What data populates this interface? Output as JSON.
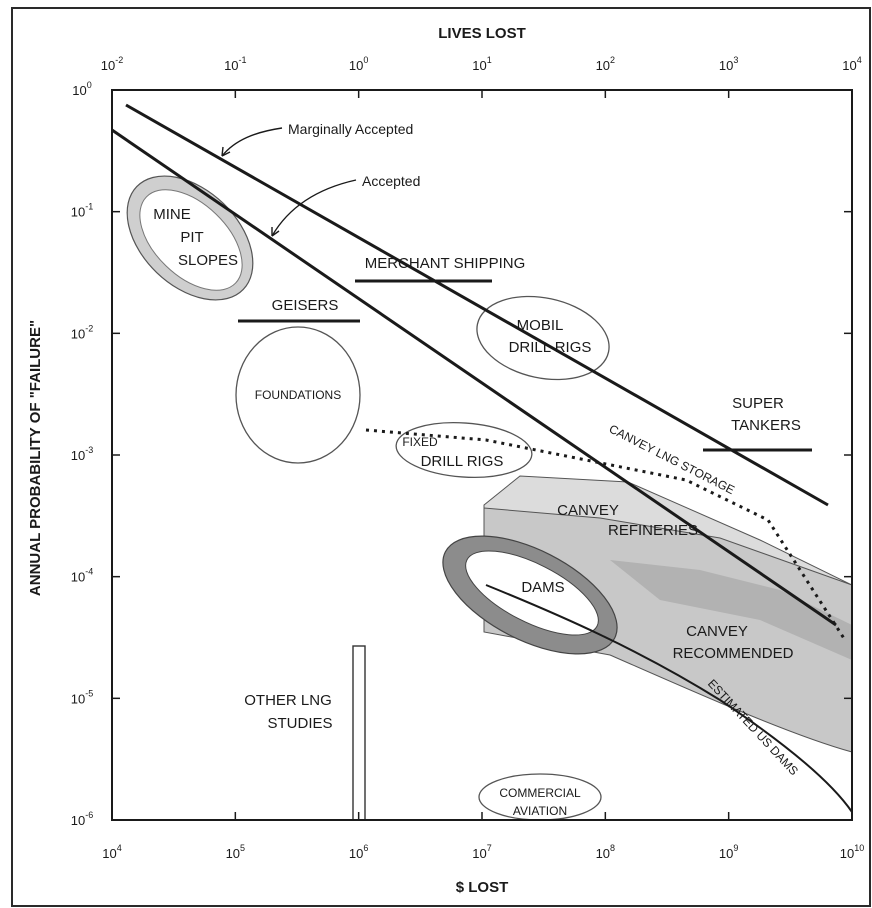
{
  "chart_data": {
    "type": "scatter",
    "title": "",
    "x_axis_top": {
      "label": "LIVES LOST",
      "scale": "log",
      "range": [
        0.01,
        10000
      ],
      "ticks": [
        {
          "base": "10",
          "exp": "-2",
          "value": 0.01
        },
        {
          "base": "10",
          "exp": "-1",
          "value": 0.1
        },
        {
          "base": "10",
          "exp": "0",
          "value": 1
        },
        {
          "base": "10",
          "exp": "1",
          "value": 10
        },
        {
          "base": "10",
          "exp": "2",
          "value": 100
        },
        {
          "base": "10",
          "exp": "3",
          "value": 1000
        },
        {
          "base": "10",
          "exp": "4",
          "value": 10000
        }
      ]
    },
    "x_axis_bottom": {
      "label": "$ LOST",
      "scale": "log",
      "range": [
        10000,
        10000000000
      ],
      "ticks": [
        {
          "base": "10",
          "exp": "4",
          "value": 10000
        },
        {
          "base": "10",
          "exp": "5",
          "value": 100000
        },
        {
          "base": "10",
          "exp": "6",
          "value": 1000000
        },
        {
          "base": "10",
          "exp": "7",
          "value": 10000000
        },
        {
          "base": "10",
          "exp": "8",
          "value": 100000000
        },
        {
          "base": "10",
          "exp": "9",
          "value": 1000000000
        },
        {
          "base": "10",
          "exp": "10",
          "value": 10000000000
        }
      ]
    },
    "y_axis": {
      "label": "ANNUAL PROBABILITY OF \"FAILURE\"",
      "scale": "log",
      "range": [
        1e-06,
        1
      ],
      "ticks": [
        {
          "base": "10",
          "exp": "0",
          "value": 1
        },
        {
          "base": "10",
          "exp": "-1",
          "value": 0.1
        },
        {
          "base": "10",
          "exp": "-2",
          "value": 0.01
        },
        {
          "base": "10",
          "exp": "-3",
          "value": 0.001
        },
        {
          "base": "10",
          "exp": "-4",
          "value": 0.0001
        },
        {
          "base": "10",
          "exp": "-5",
          "value": 1e-05
        },
        {
          "base": "10",
          "exp": "-6",
          "value": 1e-06
        }
      ]
    },
    "grid": false,
    "legend": "none",
    "lines": [
      {
        "name": "Marginally Accepted",
        "points": [
          [
            0.013,
            0.78
          ],
          [
            5500,
            0.0004
          ]
        ]
      },
      {
        "name": "Accepted",
        "points": [
          [
            0.01,
            0.5
          ],
          [
            7700,
            2.9e-05
          ]
        ]
      },
      {
        "name": "CANVEY LNG STORAGE",
        "style": "dotted",
        "points": [
          [
            1.05,
            0.0017
          ],
          [
            11,
            0.0014
          ],
          [
            440,
            0.00065
          ],
          [
            2000,
            0.00028
          ],
          [
            8500,
            2.8e-05
          ]
        ]
      },
      {
        "name": "ESTIMATED US DAMS",
        "points": [
          [
            10,
            9e-05
          ],
          [
            100,
            4e-05
          ],
          [
            1000,
            1.2e-05
          ],
          [
            4600,
            3.5e-06
          ],
          [
            10000,
            1.1e-06
          ]
        ]
      },
      {
        "name": "MERCHANT SHIPPING",
        "points": [
          [
            1,
            0.028
          ],
          [
            11,
            0.028
          ]
        ]
      },
      {
        "name": "GEISERS",
        "points": [
          [
            0.06,
            0.013
          ],
          [
            1,
            0.013
          ]
        ]
      },
      {
        "name": "SUPER TANKERS",
        "points": [
          [
            700,
            0.0012
          ],
          [
            5500,
            0.0012
          ]
        ]
      }
    ],
    "regions": [
      {
        "name": "MINE PIT SLOPES",
        "shape": "ellipse",
        "lives_center": 0.055,
        "prob_center": 0.05
      },
      {
        "name": "FOUNDATIONS",
        "shape": "circle",
        "lives_center": 0.33,
        "prob_center": 0.0038
      },
      {
        "name": "MOBIL DRILL RIGS",
        "shape": "ellipse",
        "lives_center": 40,
        "prob_center": 0.011
      },
      {
        "name": "FIXED DRILL RIGS",
        "shape": "ellipse",
        "lives_center": 10,
        "prob_center": 0.0011
      },
      {
        "name": "DAMS",
        "shape": "ellipse",
        "lives_center": 30,
        "prob_center": 7e-05
      },
      {
        "name": "COMMERCIAL AVIATION",
        "shape": "ellipse",
        "lives_center": 30,
        "prob_center": 1.3e-06
      },
      {
        "name": "CANVEY REFINERIES",
        "shape": "band",
        "lives_range": [
          10,
          10000
        ],
        "prob_range": [
          0.00015,
          0.0006
        ]
      },
      {
        "name": "CANVEY RECOMMENDED",
        "shape": "band",
        "lives_range": [
          10,
          10000
        ],
        "prob_range": [
          2.5e-06,
          0.0004
        ]
      },
      {
        "name": "OTHER LNG STUDIES",
        "shape": "bar",
        "dollars": 1000000,
        "prob_max": 2.8e-05
      }
    ]
  },
  "labels": {
    "marginally_accepted": "Marginally Accepted",
    "accepted": "Accepted",
    "mine_1": "MINE",
    "mine_2": "PIT",
    "mine_3": "SLOPES",
    "merchant_shipping": "MERCHANT SHIPPING",
    "geisers": "GEISERS",
    "foundations": "FOUNDATIONS",
    "mobil_1": "MOBIL",
    "mobil_2": "DRILL RIGS",
    "fixed_1": "FIXED",
    "fixed_2": "DRILL RIGS",
    "super_1": "SUPER",
    "super_2": "TANKERS",
    "canvey_lng": "CANVEY LNG STORAGE",
    "canvey_ref_1": "CANVEY",
    "canvey_ref_2": "REFINERIES",
    "dams": "DAMS",
    "canvey_rec_1": "CANVEY",
    "canvey_rec_2": "RECOMMENDED",
    "us_dams": "ESTIMATED US DAMS",
    "other_lng_1": "OTHER LNG",
    "other_lng_2": "STUDIES",
    "aviation_1": "COMMERCIAL",
    "aviation_2": "AVIATION"
  },
  "colors": {
    "line": "#1a1a1a",
    "band_light": "#dcdcdc",
    "band_mid": "#c4c4c4",
    "dams_ring": "#8c8c8c",
    "mine_ring": "#cfcfcf"
  }
}
